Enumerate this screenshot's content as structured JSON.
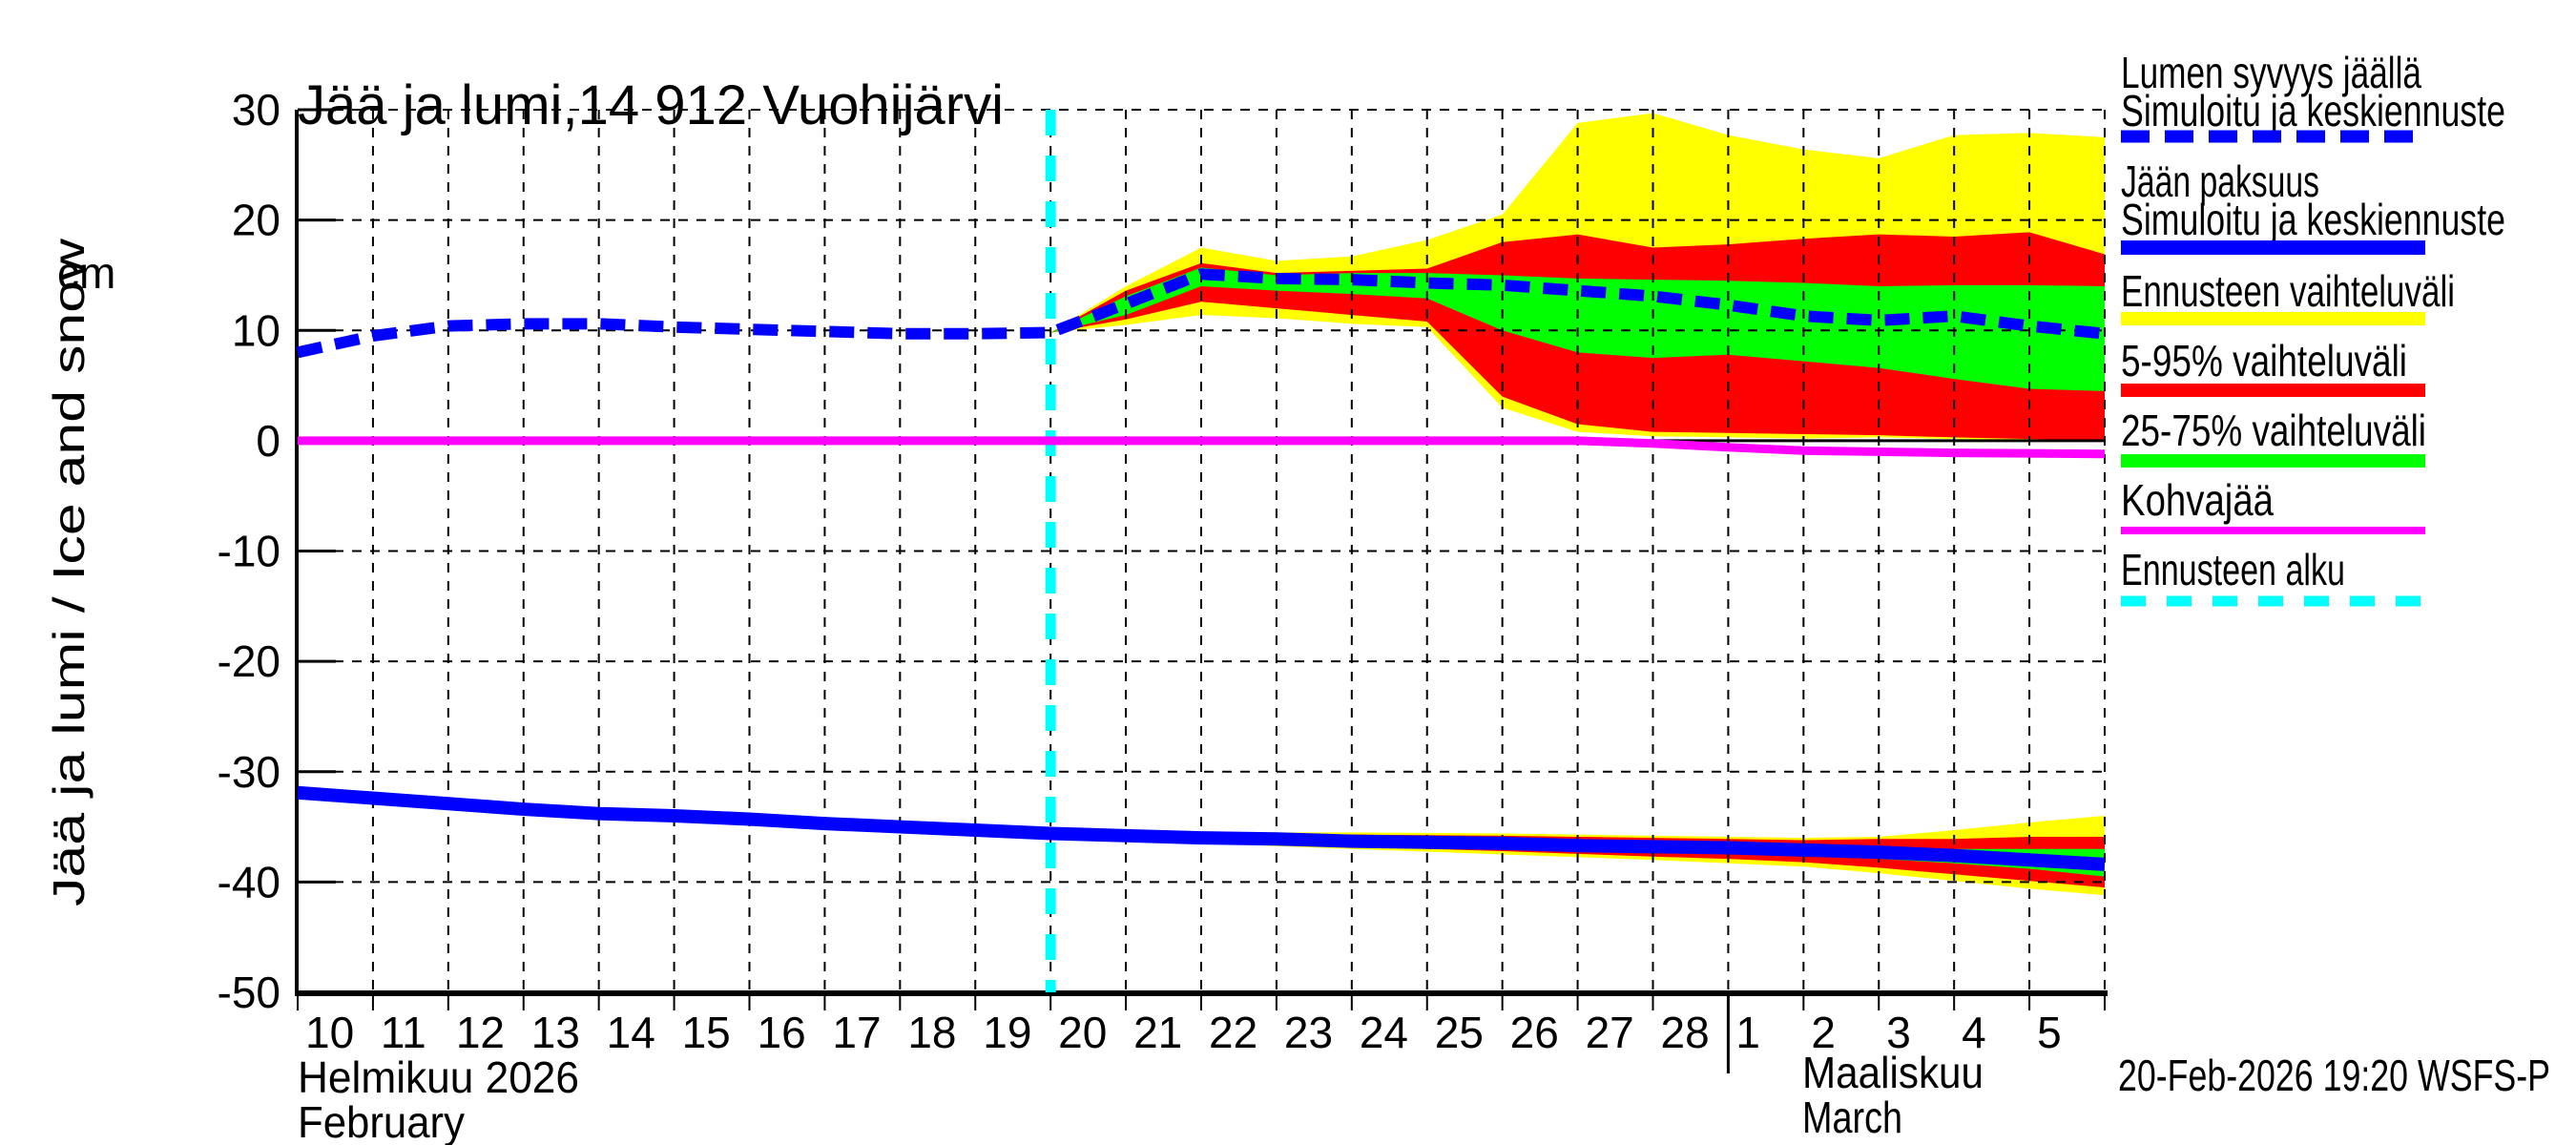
{
  "title": "Jää ja lumi,14 912 Vuohijärvi",
  "timestamp": "20-Feb-2026 19:20 WSFS-P",
  "y_axis": {
    "unit": "cm",
    "label": "Jää ja lumi / Ice and snow",
    "ticks": [
      30,
      20,
      10,
      0,
      -10,
      -20,
      -30,
      -40,
      -50
    ],
    "range": [
      -50,
      30
    ]
  },
  "x_axis": {
    "day_labels": [
      "10",
      "11",
      "12",
      "13",
      "14",
      "15",
      "16",
      "17",
      "18",
      "19",
      "20",
      "21",
      "22",
      "23",
      "24",
      "25",
      "26",
      "27",
      "28",
      "1",
      "2",
      "3",
      "4",
      "5"
    ],
    "month_left_fi": "Helmikuu  2026",
    "month_left_en": "February",
    "month_right_fi": "Maaliskuu",
    "month_right_en": "March"
  },
  "colors": {
    "simulated_line": "#0000ff",
    "forecast_range": "#ffff00",
    "range_5_95": "#ff0000",
    "range_25_75": "#00ff00",
    "kohvajaa": "#ff00ff",
    "forecast_start": "#00ffff",
    "grid": "#000000",
    "text": "#000000",
    "background": "#ffffff"
  },
  "legend": {
    "entries": [
      {
        "name": "snow-depth",
        "lines": [
          "Lumen syvyys jäällä",
          "Simuloitu ja keskiennuste"
        ],
        "sample": "dashed-blue-line"
      },
      {
        "name": "ice-thickness",
        "lines": [
          "Jään paksuus",
          "Simuloitu ja keskiennuste"
        ],
        "sample": "solid-blue-bar"
      },
      {
        "name": "forecast-range",
        "lines": [
          "Ennusteen vaihteluväli"
        ],
        "sample": "yellow-bar"
      },
      {
        "name": "range-5-95",
        "lines": [
          "5-95% vaihteluväli"
        ],
        "sample": "red-bar"
      },
      {
        "name": "range-25-75",
        "lines": [
          "25-75% vaihteluväli"
        ],
        "sample": "green-bar"
      },
      {
        "name": "kohvajaa",
        "lines": [
          "Kohvajää"
        ],
        "sample": "magenta-line"
      },
      {
        "name": "forecast-start",
        "lines": [
          "Ennusteen alku"
        ],
        "sample": "dashed-cyan-line"
      }
    ]
  },
  "chart_data": {
    "type": "area",
    "title": "Jää ja lumi,14 912 Vuohijärvi",
    "ylabel": "Jää ja lumi / Ice and snow (cm)",
    "ylim": [
      -50,
      30
    ],
    "x_unit": "days since 10-Feb-2026 (Feb 10 = 0, Mar 6 = 24)",
    "forecast_start_t": 10,
    "grid": true,
    "legend_position": "right-outside",
    "series": [
      {
        "name": "snow_depth_on_ice_sim_and_mean_forecast",
        "style": "dashed",
        "color": "#0000ff",
        "width": 12,
        "points": [
          [
            0,
            8.0
          ],
          [
            1,
            9.5
          ],
          [
            2,
            10.4
          ],
          [
            3,
            10.6
          ],
          [
            4,
            10.6
          ],
          [
            5,
            10.3
          ],
          [
            6,
            10.1
          ],
          [
            7,
            9.9
          ],
          [
            8,
            9.7
          ],
          [
            9,
            9.7
          ],
          [
            10,
            9.8
          ],
          [
            11,
            12.4
          ],
          [
            12,
            15.1
          ],
          [
            13,
            14.7
          ],
          [
            14,
            14.6
          ],
          [
            15,
            14.3
          ],
          [
            16,
            14.1
          ],
          [
            17,
            13.6
          ],
          [
            18,
            13.1
          ],
          [
            19,
            12.3
          ],
          [
            20,
            11.3
          ],
          [
            21,
            10.9
          ],
          [
            22,
            11.3
          ],
          [
            23,
            10.4
          ],
          [
            24,
            9.7
          ]
        ]
      },
      {
        "name": "ice_thickness_sim_and_mean_forecast",
        "style": "solid",
        "color": "#0000ff",
        "width": 14,
        "points": [
          [
            0,
            -31.9
          ],
          [
            1,
            -32.4
          ],
          [
            2,
            -32.9
          ],
          [
            3,
            -33.4
          ],
          [
            4,
            -33.8
          ],
          [
            5,
            -34.0
          ],
          [
            6,
            -34.3
          ],
          [
            7,
            -34.7
          ],
          [
            8,
            -35.0
          ],
          [
            9,
            -35.3
          ],
          [
            10,
            -35.6
          ],
          [
            11,
            -35.8
          ],
          [
            12,
            -36.0
          ],
          [
            13,
            -36.1
          ],
          [
            14,
            -36.3
          ],
          [
            15,
            -36.4
          ],
          [
            16,
            -36.5
          ],
          [
            17,
            -36.7
          ],
          [
            18,
            -36.8
          ],
          [
            19,
            -36.9
          ],
          [
            20,
            -37.1
          ],
          [
            21,
            -37.3
          ],
          [
            22,
            -37.6
          ],
          [
            23,
            -38.0
          ],
          [
            24,
            -38.4
          ]
        ]
      },
      {
        "name": "kohvajaa",
        "style": "solid",
        "color": "#ff00ff",
        "width": 9,
        "points": [
          [
            0,
            0
          ],
          [
            17,
            0
          ],
          [
            18,
            -0.25
          ],
          [
            19,
            -0.6
          ],
          [
            20,
            -0.9
          ],
          [
            21,
            -1.0
          ],
          [
            22,
            -1.1
          ],
          [
            23,
            -1.15
          ],
          [
            24,
            -1.2
          ]
        ]
      }
    ],
    "bands": [
      {
        "name": "snow_forecast_range",
        "color": "#ffff00",
        "upper": [
          [
            10,
            9.8
          ],
          [
            11,
            14.0
          ],
          [
            12,
            17.5
          ],
          [
            13,
            16.3
          ],
          [
            14,
            16.7
          ],
          [
            15,
            18.2
          ],
          [
            16,
            20.5
          ],
          [
            17,
            28.8
          ],
          [
            18,
            29.7
          ],
          [
            19,
            27.7
          ],
          [
            20,
            26.4
          ],
          [
            21,
            25.6
          ],
          [
            22,
            27.7
          ],
          [
            23,
            27.9
          ],
          [
            24,
            27.5
          ]
        ],
        "lower": [
          [
            10,
            9.8
          ],
          [
            11,
            10.5
          ],
          [
            12,
            11.4
          ],
          [
            13,
            11.1
          ],
          [
            14,
            10.6
          ],
          [
            15,
            10.3
          ],
          [
            16,
            3.0
          ],
          [
            17,
            0.8
          ],
          [
            18,
            0.4
          ],
          [
            19,
            0.3
          ],
          [
            20,
            0.2
          ],
          [
            21,
            0.3
          ],
          [
            22,
            0.15
          ],
          [
            23,
            0.05
          ],
          [
            24,
            -0.1
          ]
        ]
      },
      {
        "name": "snow_range_5_95",
        "color": "#ff0000",
        "upper": [
          [
            10,
            9.8
          ],
          [
            11,
            13.6
          ],
          [
            12,
            16.1
          ],
          [
            13,
            15.2
          ],
          [
            14,
            15.4
          ],
          [
            15,
            15.6
          ],
          [
            16,
            18.0
          ],
          [
            17,
            18.7
          ],
          [
            18,
            17.5
          ],
          [
            19,
            17.8
          ],
          [
            20,
            18.3
          ],
          [
            21,
            18.7
          ],
          [
            22,
            18.5
          ],
          [
            23,
            18.9
          ],
          [
            24,
            16.9
          ]
        ],
        "lower": [
          [
            10,
            9.8
          ],
          [
            11,
            11.0
          ],
          [
            12,
            12.6
          ],
          [
            13,
            12.0
          ],
          [
            14,
            11.4
          ],
          [
            15,
            10.8
          ],
          [
            16,
            4.0
          ],
          [
            17,
            1.5
          ],
          [
            18,
            0.8
          ],
          [
            19,
            0.7
          ],
          [
            20,
            0.6
          ],
          [
            21,
            0.5
          ],
          [
            22,
            0.3
          ],
          [
            23,
            0.15
          ],
          [
            24,
            0.0
          ]
        ]
      },
      {
        "name": "snow_range_25_75",
        "color": "#00ff00",
        "upper": [
          [
            10,
            9.8
          ],
          [
            11,
            13.1
          ],
          [
            12,
            15.7
          ],
          [
            13,
            15.0
          ],
          [
            14,
            15.2
          ],
          [
            15,
            15.2
          ],
          [
            16,
            15.0
          ],
          [
            17,
            14.7
          ],
          [
            18,
            14.6
          ],
          [
            19,
            14.5
          ],
          [
            20,
            14.3
          ],
          [
            21,
            14.0
          ],
          [
            22,
            14.1
          ],
          [
            23,
            14.1
          ],
          [
            24,
            14.0
          ]
        ],
        "lower": [
          [
            10,
            9.8
          ],
          [
            11,
            11.4
          ],
          [
            12,
            14.0
          ],
          [
            13,
            13.6
          ],
          [
            14,
            13.3
          ],
          [
            15,
            12.9
          ],
          [
            16,
            10.0
          ],
          [
            17,
            8.0
          ],
          [
            18,
            7.5
          ],
          [
            19,
            7.8
          ],
          [
            20,
            7.2
          ],
          [
            21,
            6.6
          ],
          [
            22,
            5.6
          ],
          [
            23,
            4.7
          ],
          [
            24,
            4.5
          ]
        ]
      },
      {
        "name": "ice_forecast_range",
        "color": "#ffff00",
        "upper": [
          [
            10,
            -35.6
          ],
          [
            12,
            -35.5
          ],
          [
            14,
            -35.5
          ],
          [
            16,
            -35.6
          ],
          [
            18,
            -35.8
          ],
          [
            19,
            -35.9
          ],
          [
            20,
            -36.0
          ],
          [
            21,
            -35.9
          ],
          [
            22,
            -35.3
          ],
          [
            23,
            -34.6
          ],
          [
            24,
            -34.0
          ]
        ],
        "lower": [
          [
            10,
            -35.6
          ],
          [
            12,
            -36.5
          ],
          [
            14,
            -37.0
          ],
          [
            16,
            -37.5
          ],
          [
            18,
            -38.0
          ],
          [
            19,
            -38.3
          ],
          [
            20,
            -38.6
          ],
          [
            21,
            -39.2
          ],
          [
            22,
            -39.9
          ],
          [
            23,
            -40.6
          ],
          [
            24,
            -41.2
          ]
        ]
      },
      {
        "name": "ice_range_5_95",
        "color": "#ff0000",
        "upper": [
          [
            10,
            -35.6
          ],
          [
            12,
            -35.6
          ],
          [
            14,
            -35.7
          ],
          [
            16,
            -35.8
          ],
          [
            18,
            -36.0
          ],
          [
            19,
            -36.1
          ],
          [
            20,
            -36.2
          ],
          [
            21,
            -36.1
          ],
          [
            22,
            -36.1
          ],
          [
            23,
            -35.9
          ],
          [
            24,
            -35.9
          ]
        ],
        "lower": [
          [
            10,
            -35.6
          ],
          [
            12,
            -36.3
          ],
          [
            14,
            -36.8
          ],
          [
            16,
            -37.2
          ],
          [
            18,
            -37.7
          ],
          [
            19,
            -37.9
          ],
          [
            20,
            -38.2
          ],
          [
            21,
            -38.7
          ],
          [
            22,
            -39.3
          ],
          [
            23,
            -39.9
          ],
          [
            24,
            -40.5
          ]
        ]
      },
      {
        "name": "ice_range_25_75",
        "color": "#00ff00",
        "upper": [
          [
            10,
            -35.6
          ],
          [
            12,
            -35.8
          ],
          [
            14,
            -36.0
          ],
          [
            16,
            -36.2
          ],
          [
            18,
            -36.5
          ],
          [
            19,
            -36.6
          ],
          [
            20,
            -36.7
          ],
          [
            21,
            -36.9
          ],
          [
            22,
            -37.0
          ],
          [
            23,
            -37.0
          ],
          [
            24,
            -37.0
          ]
        ],
        "lower": [
          [
            10,
            -35.6
          ],
          [
            12,
            -36.2
          ],
          [
            14,
            -36.6
          ],
          [
            16,
            -36.9
          ],
          [
            18,
            -37.2
          ],
          [
            19,
            -37.3
          ],
          [
            20,
            -37.6
          ],
          [
            21,
            -37.9
          ],
          [
            22,
            -38.3
          ],
          [
            23,
            -38.8
          ],
          [
            24,
            -39.5
          ]
        ]
      }
    ]
  }
}
